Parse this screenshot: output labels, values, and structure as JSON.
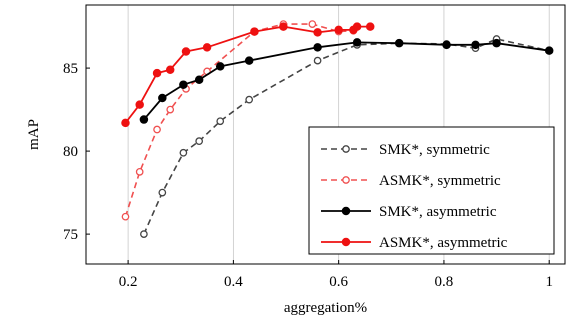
{
  "chart_data": {
    "type": "line",
    "xlabel": "aggregation%",
    "ylabel": "mAP",
    "xlim": [
      0.12,
      1.03
    ],
    "ylim": [
      73.2,
      88.8
    ],
    "xticks": [
      0.2,
      0.4,
      0.6,
      0.8,
      1.0
    ],
    "xtick_labels": [
      "0.2",
      "0.4",
      "0.6",
      "0.8",
      "1"
    ],
    "yticks": [
      75,
      80,
      85
    ],
    "ytick_labels": [
      "75",
      "80",
      "85"
    ],
    "grid": "vertical",
    "legend_position": "bottom-right",
    "series": [
      {
        "name": "SMK*, symmetric",
        "color": "#444444",
        "style": "dashed",
        "marker": "open-circle",
        "points": [
          [
            0.23,
            75.0
          ],
          [
            0.265,
            77.5
          ],
          [
            0.305,
            79.9
          ],
          [
            0.335,
            80.6
          ],
          [
            0.375,
            81.8
          ],
          [
            0.43,
            83.1
          ],
          [
            0.56,
            85.45
          ],
          [
            0.635,
            86.4
          ],
          [
            0.715,
            86.5
          ],
          [
            0.805,
            86.45
          ],
          [
            0.86,
            86.2
          ],
          [
            0.9,
            86.75
          ],
          [
            1.0,
            86.05
          ]
        ]
      },
      {
        "name": "ASMK*, symmetric",
        "color": "#f05050",
        "style": "dashed",
        "marker": "open-circle",
        "points": [
          [
            0.195,
            76.05
          ],
          [
            0.222,
            78.75
          ],
          [
            0.255,
            81.3
          ],
          [
            0.28,
            82.5
          ],
          [
            0.31,
            83.75
          ],
          [
            0.35,
            84.8
          ],
          [
            0.44,
            87.2
          ],
          [
            0.495,
            87.65
          ],
          [
            0.55,
            87.65
          ],
          [
            0.6,
            87.2
          ],
          [
            0.628,
            87.25
          ]
        ]
      },
      {
        "name": "SMK*, asymmetric",
        "color": "#000000",
        "style": "solid",
        "marker": "filled-circle",
        "points": [
          [
            0.23,
            81.9
          ],
          [
            0.265,
            83.2
          ],
          [
            0.305,
            84.0
          ],
          [
            0.335,
            84.3
          ],
          [
            0.375,
            85.1
          ],
          [
            0.43,
            85.45
          ],
          [
            0.56,
            86.25
          ],
          [
            0.635,
            86.55
          ],
          [
            0.715,
            86.5
          ],
          [
            0.805,
            86.4
          ],
          [
            0.86,
            86.4
          ],
          [
            0.9,
            86.5
          ],
          [
            1.0,
            86.05
          ]
        ]
      },
      {
        "name": "ASMK*, asymmetric",
        "color": "#ee1111",
        "style": "solid",
        "marker": "filled-circle",
        "points": [
          [
            0.195,
            81.7
          ],
          [
            0.222,
            82.8
          ],
          [
            0.255,
            84.7
          ],
          [
            0.28,
            84.9
          ],
          [
            0.31,
            86.0
          ],
          [
            0.35,
            86.25
          ],
          [
            0.44,
            87.2
          ],
          [
            0.495,
            87.5
          ],
          [
            0.56,
            87.15
          ],
          [
            0.6,
            87.3
          ],
          [
            0.628,
            87.3
          ],
          [
            0.635,
            87.5
          ],
          [
            0.66,
            87.5
          ]
        ]
      }
    ]
  }
}
